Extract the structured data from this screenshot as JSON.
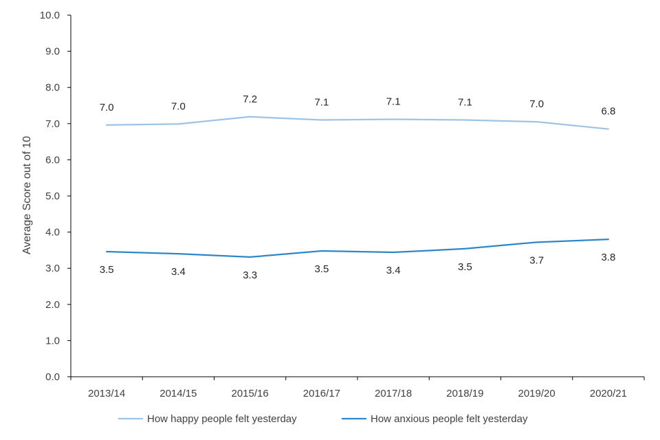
{
  "chart_data": {
    "type": "line",
    "title": "",
    "xlabel": "",
    "ylabel": "Average Score out of 10",
    "ylim": [
      0,
      10
    ],
    "y_ticks": [
      "0.0",
      "1.0",
      "2.0",
      "3.0",
      "4.0",
      "5.0",
      "6.0",
      "7.0",
      "8.0",
      "9.0",
      "10.0"
    ],
    "grid": false,
    "legend_position": "bottom",
    "categories": [
      "2013/14",
      "2014/15",
      "2015/16",
      "2016/17",
      "2017/18",
      "2018/19",
      "2019/20",
      "2020/21"
    ],
    "series": [
      {
        "name": "How happy people felt yesterday",
        "color": "#9dc3e6",
        "values": [
          6.96,
          6.99,
          7.19,
          7.1,
          7.12,
          7.1,
          7.05,
          6.85
        ],
        "labels": [
          "7.0",
          "7.0",
          "7.2",
          "7.1",
          "7.1",
          "7.1",
          "7.0",
          "6.8"
        ],
        "label_position": "above"
      },
      {
        "name": "How anxious people felt yesterday",
        "color": "#2e86c8",
        "values": [
          3.46,
          3.4,
          3.31,
          3.48,
          3.44,
          3.54,
          3.72,
          3.8
        ],
        "labels": [
          "3.5",
          "3.4",
          "3.3",
          "3.5",
          "3.4",
          "3.5",
          "3.7",
          "3.8"
        ],
        "label_position": "below"
      }
    ]
  }
}
